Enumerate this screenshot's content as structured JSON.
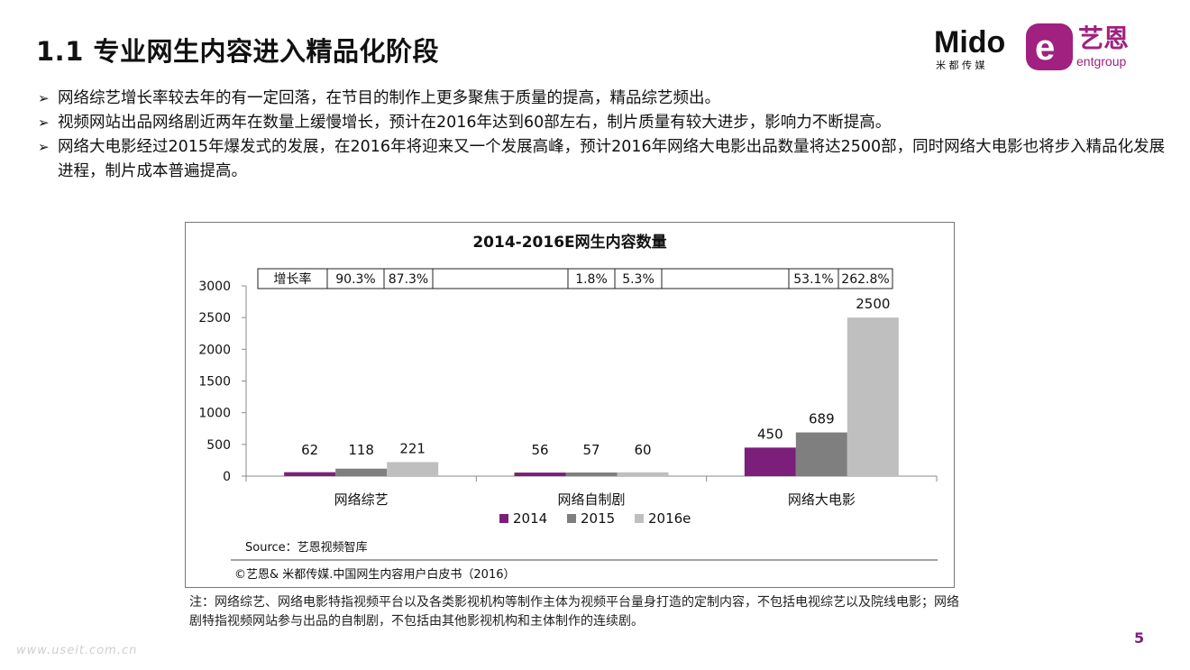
{
  "page": {
    "title": "1.1 专业网生内容进入精品化阶段",
    "page_number": "5",
    "watermark": "www.useit.com.cn",
    "logo": {
      "mido_text": "Mido",
      "mido_sub": "米 都 传 媒",
      "ent_text": "艺恩",
      "ent_sub": "entgroup"
    }
  },
  "bullets": [
    "网络综艺增长率较去年的有一定回落，在节目的制作上更多聚焦于质量的提高，精品综艺频出。",
    "视频网站出品网络剧近两年在数量上缓慢增长，预计在2016年达到60部左右，制片质量有较大进步，影响力不断提高。",
    "网络大电影经过2015年爆发式的发展，在2016年将迎来又一个发展高峰，预计2016年网络大电影出品数量将达2500部，同时网络大电影也将步入精品化发展进程，制片成本普遍提高。"
  ],
  "chart_data": {
    "type": "bar",
    "title": "2014-2016E网生内容数量",
    "categories": [
      "网络综艺",
      "网络自制剧",
      "网络大电影"
    ],
    "series": [
      {
        "name": "2014",
        "values": [
          62,
          56,
          450
        ],
        "color": "#7b1f7a"
      },
      {
        "name": "2015",
        "values": [
          118,
          57,
          689
        ],
        "color": "#7f7f7f"
      },
      {
        "name": "2016e",
        "values": [
          221,
          60,
          2500
        ],
        "color": "#bfbfbf"
      }
    ],
    "ylim": [
      0,
      3000
    ],
    "yticks": [
      0,
      500,
      1000,
      1500,
      2000,
      2500,
      3000
    ],
    "legend_position": "bottom",
    "growth_table": {
      "label": "增长率",
      "cells": [
        "90.3%",
        "87.3%",
        "",
        "1.8%",
        "5.3%",
        "",
        "53.1%",
        "262.8%"
      ]
    },
    "source": "Source：艺恩视频智库",
    "copyright": "©艺恩& 米都传媒.中国网生内容用户白皮书（2016）"
  },
  "note": "注：网络综艺、网络电影特指视频平台以及各类影视机构等制作主体为视频平台量身打造的定制内容，不包括电视综艺以及院线电影；网络剧特指视频网站参与出品的自制剧，不包括由其他影视机构和主体制作的连续剧。"
}
